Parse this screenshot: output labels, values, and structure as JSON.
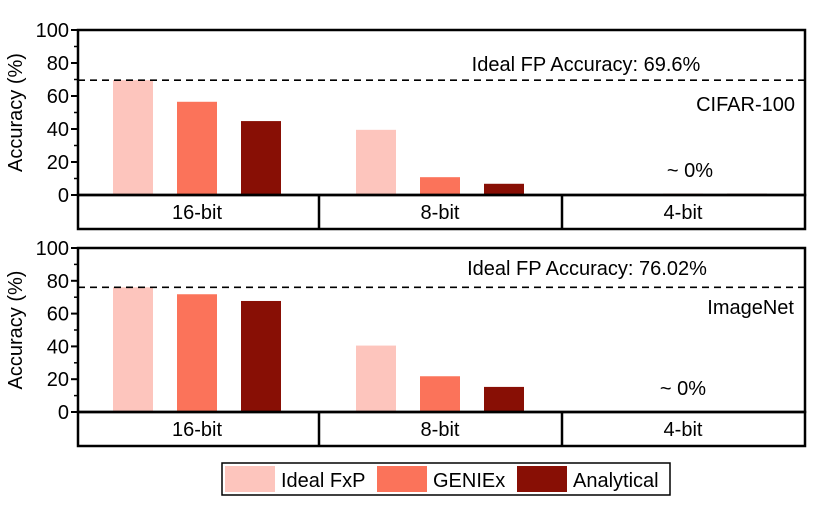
{
  "colors": {
    "ideal_fxp": "#fdc5bd",
    "geniex": "#fb735a",
    "analytical": "#880f05",
    "reference_line": "#000000"
  },
  "chart_data": [
    {
      "type": "bar",
      "dataset": "CIFAR-100",
      "categories": [
        "16-bit",
        "8-bit",
        "4-bit"
      ],
      "series": [
        {
          "name": "Ideal FxP",
          "values": [
            69.6,
            39.5,
            0.3
          ]
        },
        {
          "name": "GENIEx",
          "values": [
            56.5,
            10.8,
            0.4
          ]
        },
        {
          "name": "Analytical",
          "values": [
            44.8,
            6.8,
            0.5
          ]
        }
      ],
      "reference_line": {
        "value": 69.6,
        "label": "Ideal FP Accuracy: 69.6%"
      },
      "annotation": "~ 0%",
      "ylabel": "Accuracy (%)",
      "ylim": [
        0,
        100
      ],
      "yticks": [
        0,
        20,
        40,
        60,
        80,
        100
      ],
      "grid": false,
      "legend": "bottom"
    },
    {
      "type": "bar",
      "dataset": "ImageNet",
      "categories": [
        "16-bit",
        "8-bit",
        "4-bit"
      ],
      "series": [
        {
          "name": "Ideal FxP",
          "values": [
            76.02,
            40.5,
            0
          ]
        },
        {
          "name": "GENIEx",
          "values": [
            71.8,
            21.8,
            0
          ]
        },
        {
          "name": "Analytical",
          "values": [
            67.7,
            15.3,
            0
          ]
        }
      ],
      "reference_line": {
        "value": 76.02,
        "label": "Ideal FP Accuracy: 76.02%"
      },
      "annotation": "~ 0%",
      "ylabel": "Accuracy (%)",
      "ylim": [
        0,
        100
      ],
      "yticks": [
        0,
        20,
        40,
        60,
        80,
        100
      ],
      "grid": false,
      "legend": "bottom"
    }
  ],
  "legend": {
    "items": [
      {
        "label": "Ideal FxP",
        "color_key": "ideal_fxp"
      },
      {
        "label": "GENIEx",
        "color_key": "geniex"
      },
      {
        "label": "Analytical",
        "color_key": "analytical"
      }
    ]
  }
}
